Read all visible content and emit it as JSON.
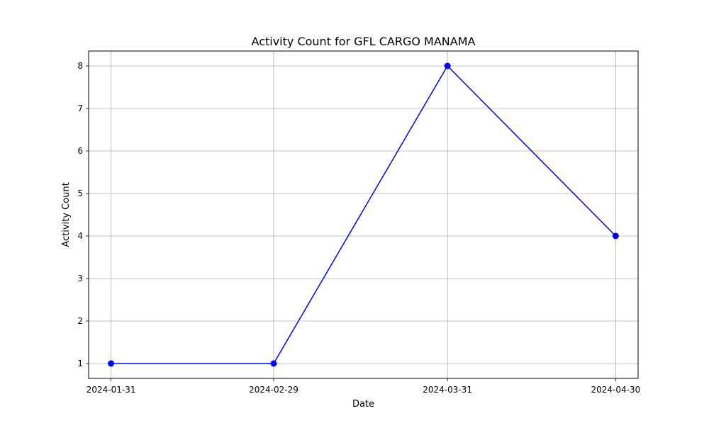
{
  "chart_data": {
    "type": "line",
    "title": "Activity Count for GFL CARGO MANAMA",
    "xlabel": "Date",
    "ylabel": "Activity Count",
    "x": [
      "2024-01-31",
      "2024-02-29",
      "2024-03-31",
      "2024-04-30"
    ],
    "series": [
      {
        "values": [
          1,
          1,
          8,
          4
        ],
        "color": "#0000ff",
        "marker": "circle"
      }
    ],
    "xticks": [
      "2024-01-31",
      "2024-02-29",
      "2024-03-31",
      "2024-04-30"
    ],
    "yticks": [
      1,
      2,
      3,
      4,
      5,
      6,
      7,
      8
    ],
    "ylim": [
      0.65,
      8.35
    ],
    "xlim": [
      "2024-01-27",
      "2024-05-04"
    ],
    "grid": true,
    "legend": "none"
  }
}
